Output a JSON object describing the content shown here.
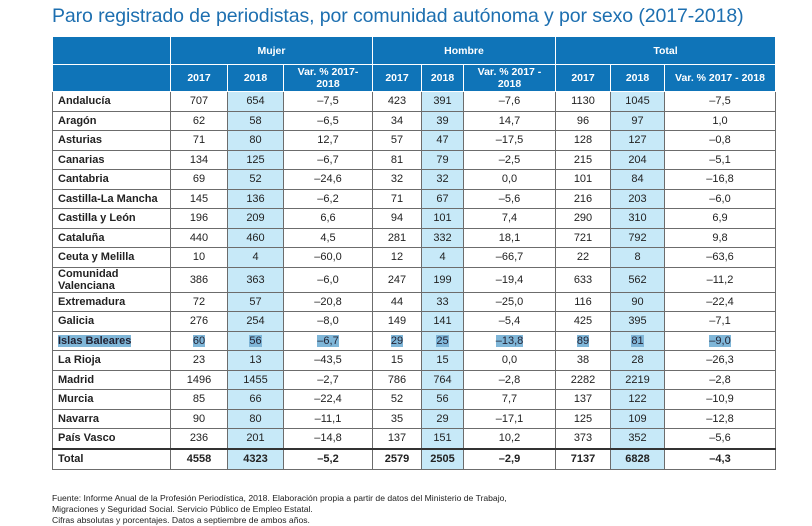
{
  "title": "Paro registrado de periodistas, por comunidad autónoma y por sexo (2017-2018)",
  "groups": [
    "Mujer",
    "Hombre",
    "Total"
  ],
  "subheaders": [
    "2017",
    "2018",
    "Var. % 2017- 2018",
    "2017",
    "2018",
    "Var. % 2017 - 2018",
    "2017",
    "2018",
    "Var. % 2017 - 2018"
  ],
  "rows": [
    [
      "Andalucía",
      "707",
      "654",
      "–7,5",
      "423",
      "391",
      "–7,6",
      "1130",
      "1045",
      "–7,5"
    ],
    [
      "Aragón",
      "62",
      "58",
      "–6,5",
      "34",
      "39",
      "14,7",
      "96",
      "97",
      "1,0"
    ],
    [
      "Asturias",
      "71",
      "80",
      "12,7",
      "57",
      "47",
      "–17,5",
      "128",
      "127",
      "–0,8"
    ],
    [
      "Canarias",
      "134",
      "125",
      "–6,7",
      "81",
      "79",
      "–2,5",
      "215",
      "204",
      "–5,1"
    ],
    [
      "Cantabria",
      "69",
      "52",
      "–24,6",
      "32",
      "32",
      "0,0",
      "101",
      "84",
      "–16,8"
    ],
    [
      "Castilla-La Mancha",
      "145",
      "136",
      "–6,2",
      "71",
      "67",
      "–5,6",
      "216",
      "203",
      "–6,0"
    ],
    [
      "Castilla y León",
      "196",
      "209",
      "6,6",
      "94",
      "101",
      "7,4",
      "290",
      "310",
      "6,9"
    ],
    [
      "Cataluña",
      "440",
      "460",
      "4,5",
      "281",
      "332",
      "18,1",
      "721",
      "792",
      "9,8"
    ],
    [
      "Ceuta y Melilla",
      "10",
      "4",
      "–60,0",
      "12",
      "4",
      "–66,7",
      "22",
      "8",
      "–63,6"
    ],
    [
      "Comunidad Valenciana",
      "386",
      "363",
      "–6,0",
      "247",
      "199",
      "–19,4",
      "633",
      "562",
      "–11,2"
    ],
    [
      "Extremadura",
      "72",
      "57",
      "–20,8",
      "44",
      "33",
      "–25,0",
      "116",
      "90",
      "–22,4"
    ],
    [
      "Galicia",
      "276",
      "254",
      "–8,0",
      "149",
      "141",
      "–5,4",
      "425",
      "395",
      "–7,1"
    ],
    [
      "Islas Baleares",
      "60",
      "56",
      "–6,7",
      "29",
      "25",
      "–13,8",
      "89",
      "81",
      "–9,0"
    ],
    [
      "La Rioja",
      "23",
      "13",
      "–43,5",
      "15",
      "15",
      "0,0",
      "38",
      "28",
      "–26,3"
    ],
    [
      "Madrid",
      "1496",
      "1455",
      "–2,7",
      "786",
      "764",
      "–2,8",
      "2282",
      "2219",
      "–2,8"
    ],
    [
      "Murcia",
      "85",
      "66",
      "–22,4",
      "52",
      "56",
      "7,7",
      "137",
      "122",
      "–10,9"
    ],
    [
      "Navarra",
      "90",
      "80",
      "–11,1",
      "35",
      "29",
      "–17,1",
      "125",
      "109",
      "–12,8"
    ],
    [
      "País Vasco",
      "236",
      "201",
      "–14,8",
      "137",
      "151",
      "10,2",
      "373",
      "352",
      "–5,6"
    ]
  ],
  "total": [
    "Total",
    "4558",
    "4323",
    "–5,2",
    "2579",
    "2505",
    "–2,9",
    "7137",
    "6828",
    "–4,3"
  ],
  "selected_row": "Islas Baleares",
  "footnote": [
    "Fuente: Informe Anual de la Profesión Periodística, 2018. Elaboración propia a partir de datos del Ministerio de Trabajo,",
    "Migraciones y Seguridad Social. Servicio Público de Empleo Estatal.",
    "Cifras absolutas y porcentajes. Datos a septiembre de ambos años."
  ]
}
